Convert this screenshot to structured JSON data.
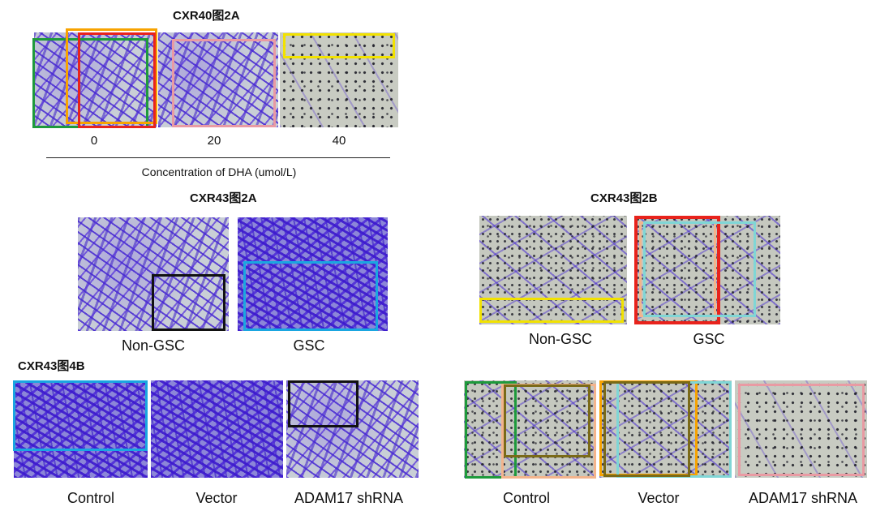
{
  "panels": {
    "cxr40_2a": {
      "title": "CXR40图2A",
      "ticks": [
        "0",
        "20",
        "40"
      ],
      "axis_label": "Concentration of DHA (umol/L)"
    },
    "cxr43_2a": {
      "title": "CXR43图2A",
      "labels": [
        "Non-GSC",
        "GSC"
      ]
    },
    "cxr43_2b": {
      "title": "CXR43图2B",
      "labels": [
        "Non-GSC",
        "GSC"
      ]
    },
    "cxr43_4b": {
      "title": "CXR43图4B",
      "labels_left": [
        "Control",
        "Vector",
        "ADAM17 shRNA"
      ],
      "labels_right": [
        "Control",
        "Vector",
        "ADAM17 shRNA"
      ]
    }
  },
  "colors": {
    "green": "#1e9a3c",
    "orange": "#f7a300",
    "red": "#e8231c",
    "pink": "#e99aa3",
    "yellow": "#f2e200",
    "black": "#111111",
    "light_blue": "#1aa6e0",
    "peach": "#f3b48c",
    "olive": "#7a6a18",
    "cyan": "#7fd6d6"
  }
}
